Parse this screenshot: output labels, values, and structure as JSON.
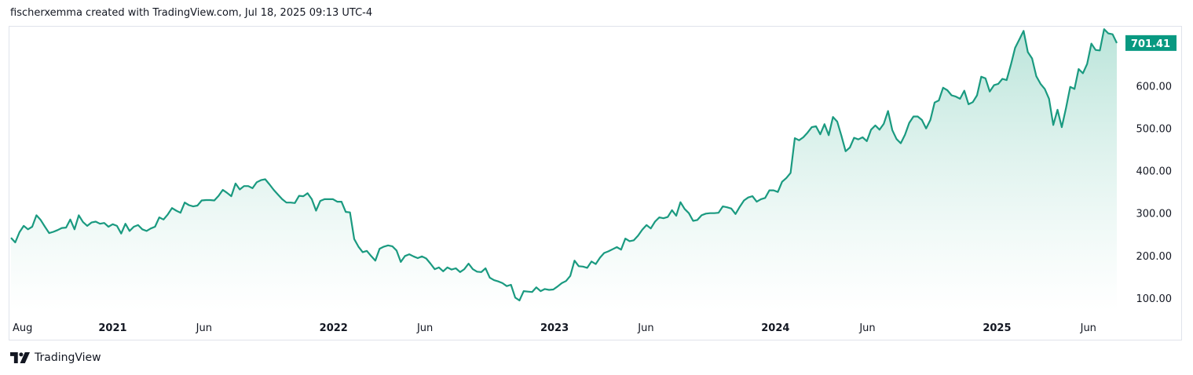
{
  "header": {
    "attribution": "fischerxemma created with TradingView.com, Jul 18, 2025 09:13 UTC-4"
  },
  "footer": {
    "brand": "TradingView"
  },
  "colors": {
    "line": "#1a9a80",
    "price_label_bg": "#089981",
    "area_top": "#b7e3d8",
    "area_bottom": "#ffffff"
  },
  "chart_data": {
    "type": "area",
    "x": [
      "2020-07-17",
      "2020-07-24",
      "2020-07-31",
      "2020-08-07",
      "2020-08-14",
      "2020-08-21",
      "2020-08-28",
      "2020-09-04",
      "2020-09-11",
      "2020-09-18",
      "2020-09-25",
      "2020-10-02",
      "2020-10-09",
      "2020-10-16",
      "2020-10-23",
      "2020-10-30",
      "2020-11-06",
      "2020-11-13",
      "2020-11-20",
      "2020-11-27",
      "2020-12-04",
      "2020-12-11",
      "2020-12-18",
      "2020-12-25",
      "2021-01-01",
      "2021-01-08",
      "2021-01-15",
      "2021-01-22",
      "2021-01-29",
      "2021-02-05",
      "2021-02-12",
      "2021-02-19",
      "2021-02-26",
      "2021-03-05",
      "2021-03-12",
      "2021-03-19",
      "2021-03-26",
      "2021-04-02",
      "2021-04-09",
      "2021-04-16",
      "2021-04-23",
      "2021-04-30",
      "2021-05-07",
      "2021-05-14",
      "2021-05-21",
      "2021-05-28",
      "2021-06-04",
      "2021-06-11",
      "2021-06-18",
      "2021-06-25",
      "2021-07-02",
      "2021-07-09",
      "2021-07-16",
      "2021-07-23",
      "2021-07-30",
      "2021-08-06",
      "2021-08-13",
      "2021-08-20",
      "2021-08-27",
      "2021-09-03",
      "2021-09-10",
      "2021-09-17",
      "2021-09-24",
      "2021-10-01",
      "2021-10-08",
      "2021-10-15",
      "2021-10-22",
      "2021-10-29",
      "2021-11-05",
      "2021-11-12",
      "2021-11-19",
      "2021-11-26",
      "2021-12-03",
      "2021-12-10",
      "2021-12-17",
      "2021-12-24",
      "2021-12-31",
      "2022-01-07",
      "2022-01-14",
      "2022-01-21",
      "2022-01-28",
      "2022-02-04",
      "2022-02-11",
      "2022-02-18",
      "2022-02-25",
      "2022-03-04",
      "2022-03-11",
      "2022-03-18",
      "2022-03-25",
      "2022-04-01",
      "2022-04-08",
      "2022-04-15",
      "2022-04-22",
      "2022-04-29",
      "2022-05-06",
      "2022-05-13",
      "2022-05-20",
      "2022-05-27",
      "2022-06-03",
      "2022-06-10",
      "2022-06-17",
      "2022-06-24",
      "2022-07-01",
      "2022-07-08",
      "2022-07-15",
      "2022-07-22",
      "2022-07-29",
      "2022-08-05",
      "2022-08-12",
      "2022-08-19",
      "2022-08-26",
      "2022-09-02",
      "2022-09-09",
      "2022-09-16",
      "2022-09-23",
      "2022-09-30",
      "2022-10-07",
      "2022-10-14",
      "2022-10-21",
      "2022-10-28",
      "2022-11-04",
      "2022-11-11",
      "2022-11-18",
      "2022-11-25",
      "2022-12-02",
      "2022-12-09",
      "2022-12-16",
      "2022-12-23",
      "2022-12-30",
      "2023-01-06",
      "2023-01-13",
      "2023-01-20",
      "2023-01-27",
      "2023-02-03",
      "2023-02-10",
      "2023-02-17",
      "2023-02-24",
      "2023-03-03",
      "2023-03-10",
      "2023-03-17",
      "2023-03-24",
      "2023-03-31",
      "2023-04-07",
      "2023-04-14",
      "2023-04-21",
      "2023-04-28",
      "2023-05-05",
      "2023-05-12",
      "2023-05-19",
      "2023-05-26",
      "2023-06-02",
      "2023-06-09",
      "2023-06-16",
      "2023-06-23",
      "2023-06-30",
      "2023-07-07",
      "2023-07-14",
      "2023-07-21",
      "2023-07-28",
      "2023-08-04",
      "2023-08-11",
      "2023-08-18",
      "2023-08-25",
      "2023-09-01",
      "2023-09-08",
      "2023-09-15",
      "2023-09-22",
      "2023-09-29",
      "2023-10-06",
      "2023-10-13",
      "2023-10-20",
      "2023-10-27",
      "2023-11-03",
      "2023-11-10",
      "2023-11-17",
      "2023-11-24",
      "2023-12-01",
      "2023-12-08",
      "2023-12-15",
      "2023-12-22",
      "2023-12-29",
      "2024-01-05",
      "2024-01-12",
      "2024-01-19",
      "2024-01-26",
      "2024-02-02",
      "2024-02-09",
      "2024-02-16",
      "2024-02-23",
      "2024-03-01",
      "2024-03-08",
      "2024-03-15",
      "2024-03-22",
      "2024-03-29",
      "2024-04-05",
      "2024-04-12",
      "2024-04-19",
      "2024-04-26",
      "2024-05-03",
      "2024-05-10",
      "2024-05-17",
      "2024-05-24",
      "2024-05-31",
      "2024-06-07",
      "2024-06-14",
      "2024-06-21",
      "2024-06-28",
      "2024-07-05",
      "2024-07-12",
      "2024-07-19",
      "2024-07-26",
      "2024-08-02",
      "2024-08-09",
      "2024-08-16",
      "2024-08-23",
      "2024-08-30",
      "2024-09-06",
      "2024-09-13",
      "2024-09-20",
      "2024-09-27",
      "2024-10-04",
      "2024-10-11",
      "2024-10-18",
      "2024-10-25",
      "2024-11-01",
      "2024-11-08",
      "2024-11-15",
      "2024-11-22",
      "2024-11-29",
      "2024-12-06",
      "2024-12-13",
      "2024-12-20",
      "2024-12-27",
      "2025-01-03",
      "2025-01-10",
      "2025-01-17",
      "2025-01-24",
      "2025-01-31",
      "2025-02-07",
      "2025-02-14",
      "2025-02-21",
      "2025-02-28",
      "2025-03-07",
      "2025-03-14",
      "2025-03-21",
      "2025-03-28",
      "2025-04-04",
      "2025-04-11",
      "2025-04-18",
      "2025-04-25",
      "2025-05-02",
      "2025-05-09",
      "2025-05-16",
      "2025-05-23",
      "2025-05-30",
      "2025-06-06",
      "2025-06-13",
      "2025-06-20",
      "2025-06-27",
      "2025-07-04",
      "2025-07-11",
      "2025-07-18"
    ],
    "series": [
      {
        "values": [
          242,
          231,
          255,
          270,
          262,
          268,
          295,
          284,
          268,
          253,
          256,
          260,
          265,
          266,
          285,
          262,
          295,
          279,
          270,
          278,
          280,
          275,
          277,
          268,
          274,
          270,
          252,
          275,
          258,
          268,
          272,
          262,
          258,
          264,
          268,
          290,
          285,
          297,
          312,
          306,
          301,
          325,
          319,
          316,
          318,
          330,
          331,
          331,
          330,
          341,
          355,
          348,
          340,
          370,
          356,
          364,
          364,
          359,
          373,
          378,
          380,
          368,
          355,
          344,
          333,
          325,
          325,
          324,
          341,
          340,
          347,
          333,
          306,
          329,
          333,
          333,
          333,
          327,
          327,
          303,
          302,
          239,
          221,
          208,
          211,
          199,
          188,
          216,
          221,
          224,
          222,
          212,
          185,
          199,
          203,
          198,
          194,
          198,
          193,
          181,
          168,
          172,
          163,
          172,
          167,
          170,
          161,
          168,
          181,
          168,
          162,
          161,
          170,
          148,
          142,
          139,
          135,
          128,
          131,
          101,
          94,
          116,
          115,
          114,
          125,
          116,
          121,
          119,
          120,
          127,
          135,
          140,
          152,
          188,
          175,
          174,
          171,
          186,
          180,
          195,
          206,
          210,
          215,
          220,
          214,
          240,
          234,
          236,
          247,
          261,
          272,
          264,
          280,
          290,
          288,
          291,
          307,
          294,
          326,
          310,
          300,
          282,
          284,
          295,
          299,
          300,
          300,
          301,
          316,
          314,
          311,
          298,
          315,
          330,
          337,
          340,
          327,
          333,
          336,
          354,
          354,
          350,
          374,
          383,
          395,
          477,
          472,
          479,
          490,
          503,
          505,
          486,
          510,
          484,
          527,
          516,
          483,
          446,
          455,
          478,
          474,
          479,
          470,
          497,
          507,
          497,
          511,
          541,
          496,
          475,
          465,
          485,
          513,
          528,
          528,
          520,
          500,
          520,
          561,
          566,
          596,
          590,
          578,
          575,
          570,
          589,
          557,
          562,
          578,
          622,
          618,
          587,
          602,
          605,
          617,
          614,
          650,
          690,
          710,
          730,
          680,
          665,
          623,
          605,
          593,
          570,
          508,
          544,
          503,
          548,
          598,
          593,
          640,
          630,
          652,
          700,
          685,
          684,
          734,
          724,
          722,
          701.41
        ]
      }
    ],
    "ylim": [
      70,
      740
    ],
    "yticks": [
      "100.00",
      "200.00",
      "300.00",
      "400.00",
      "500.00",
      "600.00"
    ],
    "xticks": [
      {
        "label": "Aug",
        "date": "2020-08-01",
        "bold": false
      },
      {
        "label": "2021",
        "date": "2021-01-01",
        "bold": true
      },
      {
        "label": "Jun",
        "date": "2021-06-01",
        "bold": false
      },
      {
        "label": "2022",
        "date": "2022-01-01",
        "bold": true
      },
      {
        "label": "Jun",
        "date": "2022-06-01",
        "bold": false
      },
      {
        "label": "2023",
        "date": "2023-01-01",
        "bold": true
      },
      {
        "label": "Jun",
        "date": "2023-06-01",
        "bold": false
      },
      {
        "label": "2024",
        "date": "2024-01-01",
        "bold": true
      },
      {
        "label": "Jun",
        "date": "2024-06-01",
        "bold": false
      },
      {
        "label": "2025",
        "date": "2025-01-01",
        "bold": true
      },
      {
        "label": "Jun",
        "date": "2025-06-01",
        "bold": false
      }
    ],
    "last_price_label": "701.41",
    "grid": false
  }
}
